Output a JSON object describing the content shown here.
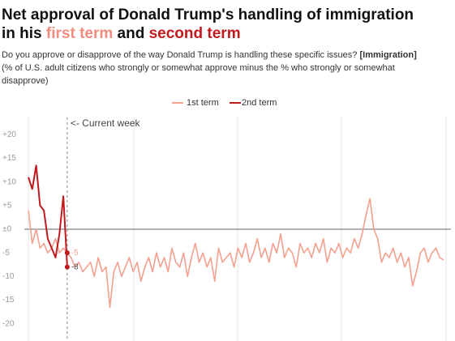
{
  "chart_data": {
    "type": "line",
    "title_parts": [
      "Net approval of Donald Trump's handling of immigration",
      "in his",
      "first term",
      "and",
      "second term"
    ],
    "subtitle_question": "Do you approve or disapprove of the way Donald Trump is handling these specific issues?",
    "subtitle_topic": "[Immigration]",
    "subtitle_note_lines": [
      "(% of U.S. adult citizens who strongly or somewhat approve minus the % who strongly or somewhat",
      "disapprove)"
    ],
    "annotation": "<- Current week",
    "current_week_index": 10,
    "series": [
      {
        "name": "1st term",
        "color": "#f4a08f",
        "values": [
          4,
          -3,
          0,
          -4,
          -3,
          -5,
          -4,
          -2,
          -5,
          -4,
          -5,
          -6,
          -8,
          -7,
          -9,
          -8,
          -7,
          -10,
          -6,
          -9,
          -8,
          -16.5,
          -9,
          -7,
          -10,
          -8,
          -6,
          -9,
          -7,
          -11,
          -8,
          -6,
          -9,
          -5,
          -8,
          -6,
          -9,
          -4,
          -7,
          -8,
          -5,
          -10,
          -6,
          -3,
          -7,
          -5,
          -8,
          -6,
          -11,
          -4,
          -7,
          -6,
          -5,
          -8,
          -4,
          -6,
          -3,
          -7,
          -5,
          -2,
          -6,
          -4,
          -7,
          -3,
          -5,
          -1,
          -6,
          -4,
          -5,
          -8,
          -3,
          -5,
          -4,
          -6,
          -3,
          -5,
          -2,
          -7,
          -4,
          -5,
          -3,
          -6,
          -4,
          -5,
          -2,
          -4,
          -1,
          3,
          6.5,
          0,
          -2,
          -7,
          -5,
          -6,
          -4,
          -7,
          -5,
          -8,
          -6,
          -12,
          -9,
          -5,
          -4,
          -7,
          -5,
          -4,
          -6,
          -6.5
        ]
      },
      {
        "name": "2nd term",
        "color": "#c0191e",
        "values": [
          11,
          8.5,
          13.5,
          5,
          4,
          -2,
          -4,
          -6,
          -1,
          7,
          -8
        ]
      }
    ],
    "ylim": [
      -21,
      21
    ],
    "yticks": [
      {
        "value": 20,
        "label": "+20"
      },
      {
        "value": 15,
        "label": "+15"
      },
      {
        "value": 10,
        "label": "+10"
      },
      {
        "value": 5,
        "label": "+5"
      },
      {
        "value": 0,
        "label": "±0"
      },
      -5,
      -10,
      -15,
      -20
    ]
  }
}
